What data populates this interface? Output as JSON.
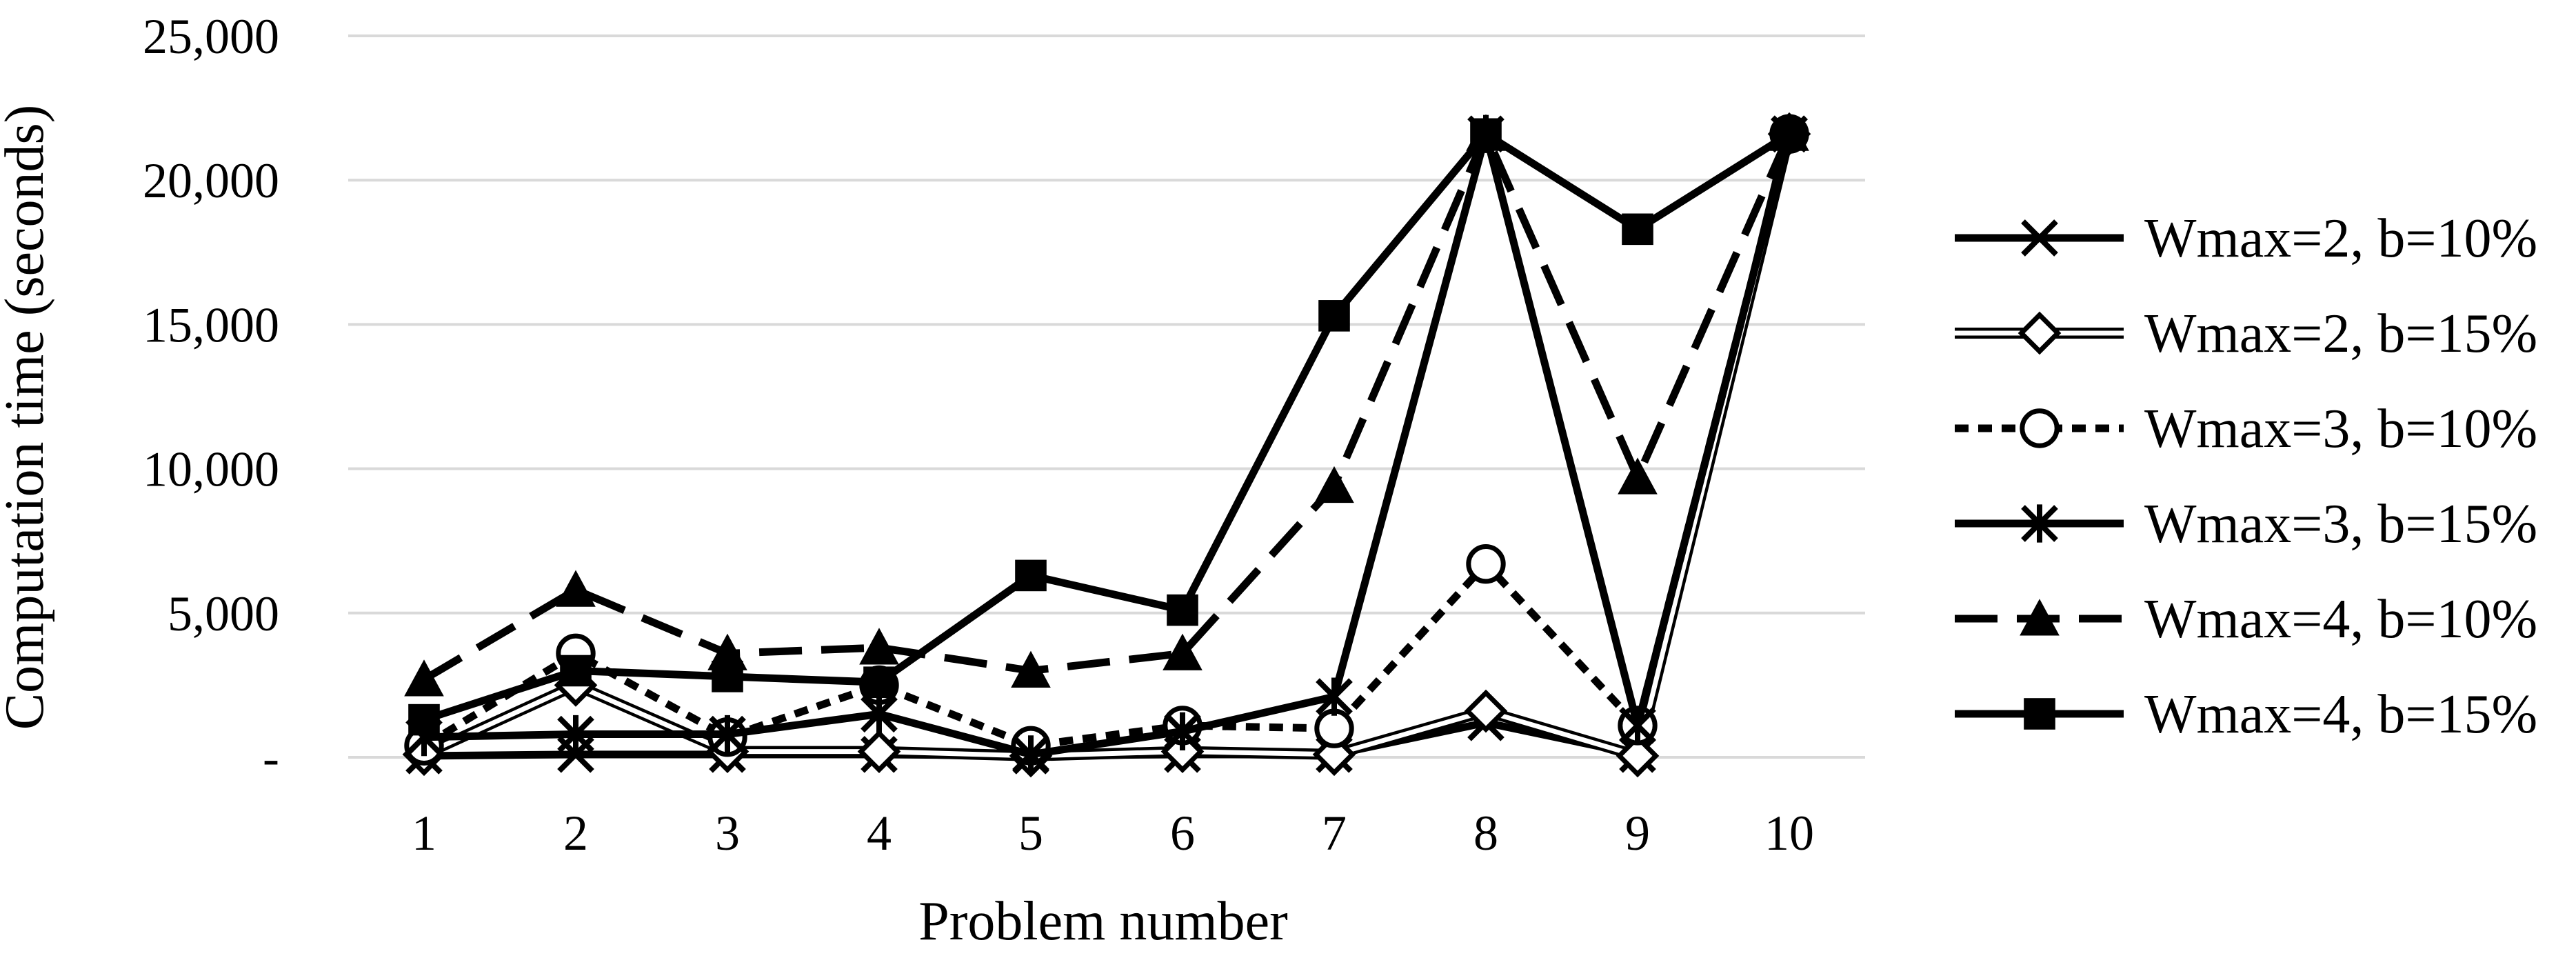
{
  "chart_data": {
    "type": "line",
    "title": "",
    "xlabel": "Problem number",
    "ylabel": "Computation time (seconds)",
    "categories": [
      "1",
      "2",
      "3",
      "4",
      "5",
      "6",
      "7",
      "8",
      "9",
      "10"
    ],
    "ylim": [
      0,
      25000
    ],
    "y_ticks": [
      0,
      5000,
      10000,
      15000,
      20000,
      25000
    ],
    "y_tick_labels": [
      "-",
      "5,000",
      "10,000",
      "15,000",
      "20,000",
      "25,000"
    ],
    "grid": "horizontal",
    "legend_position": "right",
    "series": [
      {
        "name": "Wmax=2, b=10%",
        "marker": "x",
        "dash": "solid",
        "values": [
          50,
          100,
          100,
          100,
          50,
          100,
          100,
          1200,
          100,
          21600
        ]
      },
      {
        "name": "Wmax=2, b=15%",
        "marker": "diamond-open",
        "dash": "hollow",
        "values": [
          100,
          2500,
          200,
          200,
          50,
          200,
          100,
          1600,
          50,
          21600
        ]
      },
      {
        "name": "Wmax=3, b=10%",
        "marker": "circle-open",
        "dash": "short-dash",
        "values": [
          400,
          3600,
          700,
          2500,
          400,
          1100,
          1000,
          6700,
          1100,
          21600
        ]
      },
      {
        "name": "Wmax=3, b=15%",
        "marker": "asterisk",
        "dash": "solid",
        "values": [
          700,
          800,
          800,
          1500,
          100,
          900,
          2100,
          21600,
          1100,
          21600
        ]
      },
      {
        "name": "Wmax=4, b=10%",
        "marker": "triangle",
        "dash": "long-dash",
        "values": [
          2700,
          5800,
          3600,
          3800,
          3000,
          3600,
          9400,
          21600,
          9700,
          21600
        ]
      },
      {
        "name": "Wmax=4, b=15%",
        "marker": "square",
        "dash": "solid",
        "values": [
          1300,
          3000,
          2800,
          2600,
          6300,
          5100,
          15300,
          21600,
          18300,
          21600
        ]
      }
    ]
  }
}
